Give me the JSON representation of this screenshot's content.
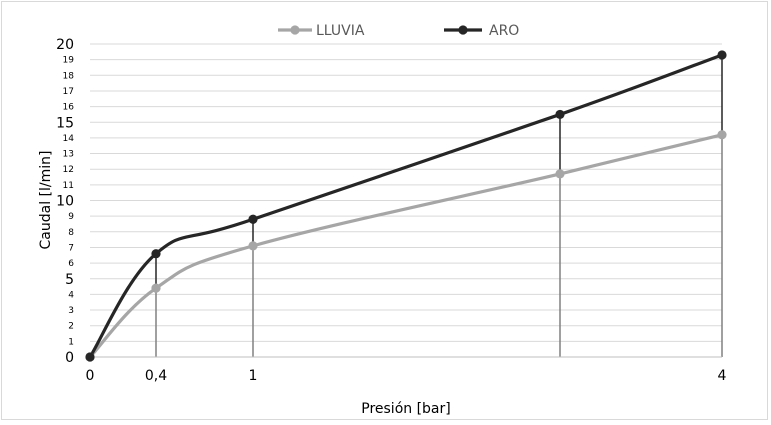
{
  "chart_data": {
    "type": "line",
    "title": "",
    "xlabel": "Presión [bar]",
    "ylabel": "Caudal [l/min]",
    "xlim": [
      0,
      4
    ],
    "ylim": [
      0,
      20
    ],
    "x_ticks": [
      {
        "value": 0,
        "label": "0"
      },
      {
        "value": 0.4,
        "label": "0,4"
      },
      {
        "value": 1,
        "label": "1"
      },
      {
        "value": 4,
        "label": "4"
      }
    ],
    "y_ticks": [
      {
        "value": 0,
        "label": "0",
        "major": true
      },
      {
        "value": 1,
        "label": "1",
        "major": false
      },
      {
        "value": 2,
        "label": "2",
        "major": false
      },
      {
        "value": 3,
        "label": "3",
        "major": false
      },
      {
        "value": 4,
        "label": "4",
        "major": false
      },
      {
        "value": 5,
        "label": "5",
        "major": true
      },
      {
        "value": 6,
        "label": "6",
        "major": false
      },
      {
        "value": 7,
        "label": "7",
        "major": false
      },
      {
        "value": 8,
        "label": "8",
        "major": false
      },
      {
        "value": 9,
        "label": "9",
        "major": false
      },
      {
        "value": 10,
        "label": "10",
        "major": true
      },
      {
        "value": 11,
        "label": "11",
        "major": false
      },
      {
        "value": 12,
        "label": "12",
        "major": false
      },
      {
        "value": 13,
        "label": "13",
        "major": false
      },
      {
        "value": 14,
        "label": "14",
        "major": false
      },
      {
        "value": 15,
        "label": "15",
        "major": true
      },
      {
        "value": 16,
        "label": "16",
        "major": false
      },
      {
        "value": 17,
        "label": "17",
        "major": false
      },
      {
        "value": 18,
        "label": "18",
        "major": false
      },
      {
        "value": 19,
        "label": "19",
        "major": false
      },
      {
        "value": 20,
        "label": "20",
        "major": true
      }
    ],
    "grid": true,
    "legend_position": "top",
    "series": [
      {
        "name": "LLUVIA",
        "color": "#a6a6a6",
        "points": [
          [
            0,
            0
          ],
          [
            0.4,
            4.4
          ],
          [
            1,
            7.1
          ],
          [
            3,
            11.7
          ],
          [
            4,
            14.2
          ]
        ]
      },
      {
        "name": "ARO",
        "color": "#262626",
        "points": [
          [
            0,
            0
          ],
          [
            0.4,
            6.6
          ],
          [
            1,
            8.8
          ],
          [
            3,
            15.5
          ],
          [
            4,
            19.3
          ]
        ]
      }
    ],
    "drop_lines": true
  }
}
